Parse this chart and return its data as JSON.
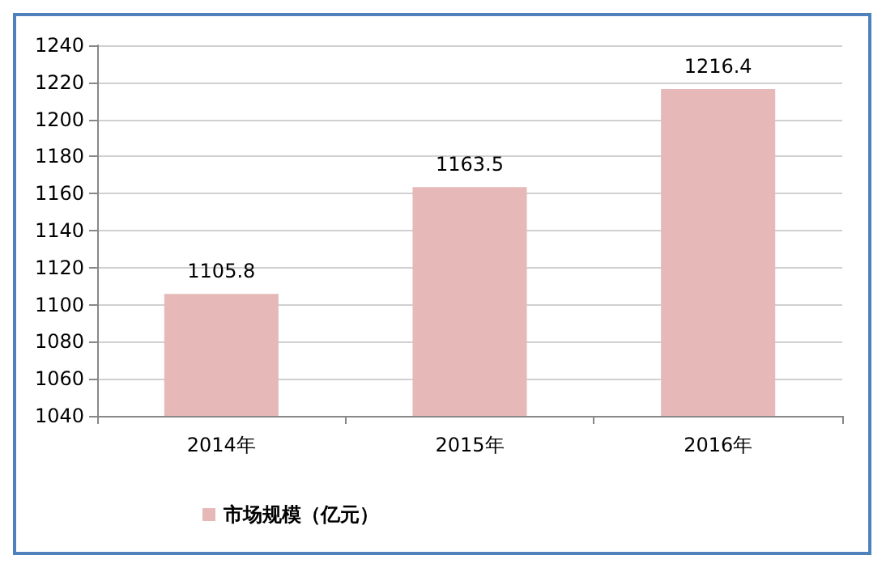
{
  "chart_data": {
    "type": "bar",
    "categories": [
      "2014年",
      "2015年",
      "2016年"
    ],
    "series": [
      {
        "name": "市场规模（亿元）",
        "color": "#e6b9b8",
        "values": [
          1105.8,
          1163.5,
          1216.4
        ]
      }
    ],
    "ylim": [
      1040,
      1240
    ],
    "yticks": [
      1040,
      1060,
      1080,
      1100,
      1120,
      1140,
      1160,
      1180,
      1200,
      1220,
      1240
    ],
    "grid": "y",
    "legend": "bottom",
    "data_labels": true
  }
}
